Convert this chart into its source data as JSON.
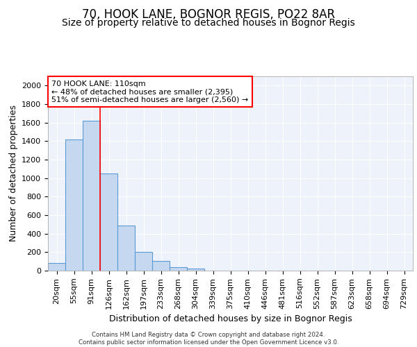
{
  "title": "70, HOOK LANE, BOGNOR REGIS, PO22 8AR",
  "subtitle": "Size of property relative to detached houses in Bognor Regis",
  "xlabel": "Distribution of detached houses by size in Bognor Regis",
  "ylabel": "Number of detached properties",
  "bar_labels": [
    "20sqm",
    "55sqm",
    "91sqm",
    "126sqm",
    "162sqm",
    "197sqm",
    "233sqm",
    "268sqm",
    "304sqm",
    "339sqm",
    "375sqm",
    "410sqm",
    "446sqm",
    "481sqm",
    "516sqm",
    "552sqm",
    "587sqm",
    "623sqm",
    "658sqm",
    "694sqm",
    "729sqm"
  ],
  "bar_values": [
    80,
    1420,
    1620,
    1050,
    490,
    200,
    105,
    35,
    20,
    0,
    0,
    0,
    0,
    0,
    0,
    0,
    0,
    0,
    0,
    0,
    0
  ],
  "bar_color": "#c5d8f0",
  "bar_edge_color": "#5b9bd5",
  "red_line_bin": 2,
  "annotation_title": "70 HOOK LANE: 110sqm",
  "annotation_line1": "← 48% of detached houses are smaller (2,395)",
  "annotation_line2": "51% of semi-detached houses are larger (2,560) →",
  "ylim": [
    0,
    2100
  ],
  "yticks": [
    0,
    200,
    400,
    600,
    800,
    1000,
    1200,
    1400,
    1600,
    1800,
    2000
  ],
  "footer1": "Contains HM Land Registry data © Crown copyright and database right 2024.",
  "footer2": "Contains public sector information licensed under the Open Government Licence v3.0.",
  "bg_color": "#eef2fb",
  "grid_color": "#ffffff",
  "title_fontsize": 12,
  "subtitle_fontsize": 10,
  "axis_label_fontsize": 9,
  "tick_fontsize": 8
}
